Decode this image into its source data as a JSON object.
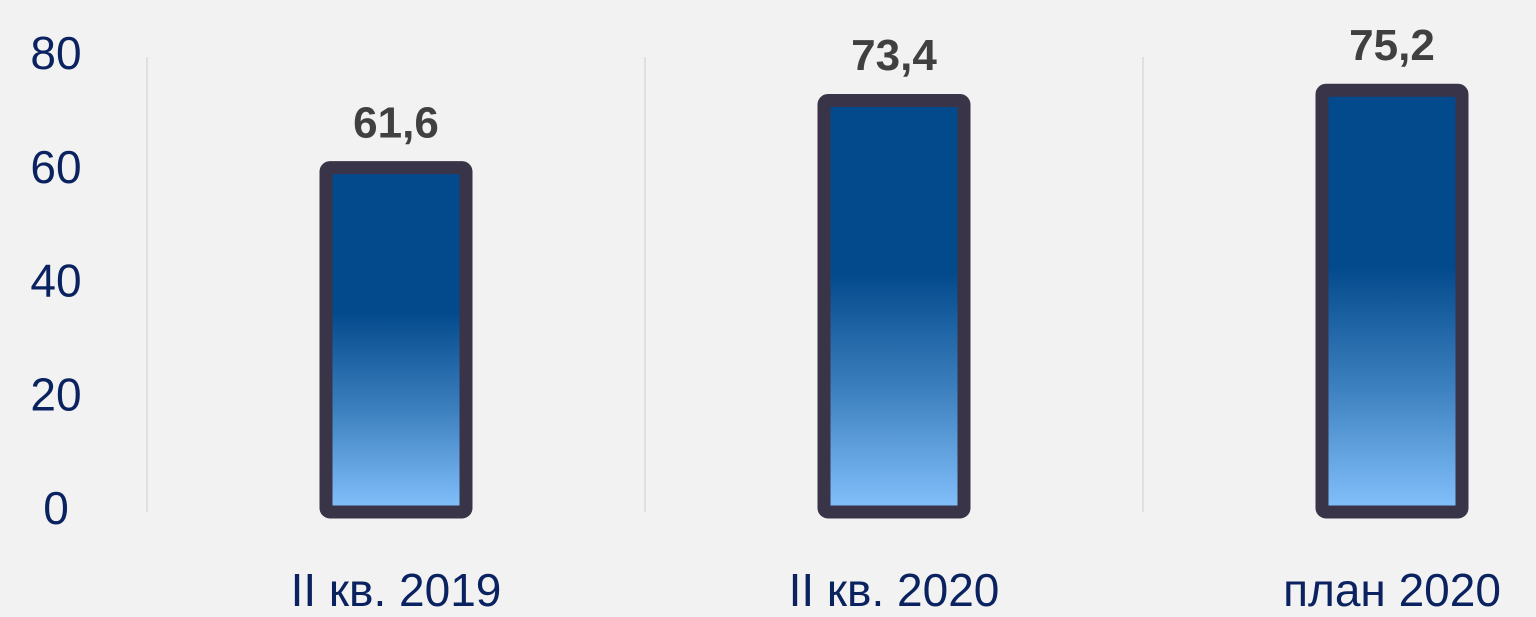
{
  "chart_data": {
    "type": "bar",
    "categories": [
      "II кв. 2019",
      "II кв. 2020",
      "план 2020"
    ],
    "values": [
      61.6,
      73.4,
      75.2
    ],
    "value_labels": [
      "61,6",
      "73,4",
      "75,2"
    ],
    "ylim": [
      0,
      80
    ],
    "yticks": [
      0,
      20,
      40,
      60,
      80
    ]
  }
}
